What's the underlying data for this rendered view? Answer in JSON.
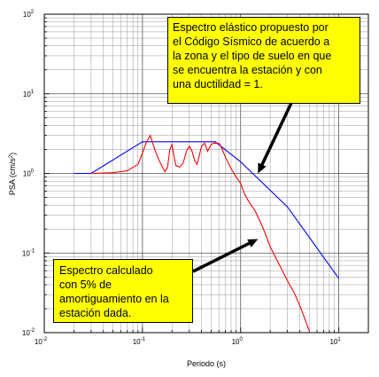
{
  "chart_data": {
    "type": "line",
    "xscale": "log",
    "yscale": "log",
    "xlim": [
      0.01,
      20
    ],
    "ylim": [
      0.01,
      100
    ],
    "xlabel": "Periodo (s)",
    "ylabel_main": "PSA (cm/s",
    "ylabel_sup": "2",
    "ylabel_end": ")",
    "grid": true,
    "x_ticks": [
      {
        "v": 0.01,
        "base": "10",
        "exp": "-2"
      },
      {
        "v": 0.1,
        "base": "10",
        "exp": "-1"
      },
      {
        "v": 1,
        "base": "10",
        "exp": "0"
      },
      {
        "v": 10,
        "base": "10",
        "exp": "1"
      }
    ],
    "y_ticks": [
      {
        "v": 0.01,
        "base": "10",
        "exp": "-2"
      },
      {
        "v": 0.1,
        "base": "10",
        "exp": "-1"
      },
      {
        "v": 1,
        "base": "10",
        "exp": "0"
      },
      {
        "v": 10,
        "base": "10",
        "exp": "1"
      },
      {
        "v": 100,
        "base": "10",
        "exp": "2"
      }
    ],
    "series": [
      {
        "color": "#0000ff",
        "points": [
          [
            0.02,
            1.0
          ],
          [
            0.03,
            1.0
          ],
          [
            0.1,
            2.5
          ],
          [
            0.14,
            2.5
          ],
          [
            0.55,
            2.5
          ],
          [
            1.0,
            1.4
          ],
          [
            3.0,
            0.38
          ],
          [
            10.0,
            0.048
          ]
        ]
      },
      {
        "color": "#ff0000",
        "points": [
          [
            0.03,
            1.0
          ],
          [
            0.05,
            1.02
          ],
          [
            0.07,
            1.08
          ],
          [
            0.09,
            1.3
          ],
          [
            0.1,
            1.8
          ],
          [
            0.11,
            2.5
          ],
          [
            0.12,
            3.0
          ],
          [
            0.13,
            2.2
          ],
          [
            0.14,
            1.7
          ],
          [
            0.15,
            1.4
          ],
          [
            0.16,
            1.2
          ],
          [
            0.17,
            1.05
          ],
          [
            0.18,
            1.2
          ],
          [
            0.19,
            2.0
          ],
          [
            0.2,
            2.3
          ],
          [
            0.21,
            1.6
          ],
          [
            0.22,
            1.25
          ],
          [
            0.24,
            1.2
          ],
          [
            0.26,
            1.35
          ],
          [
            0.28,
            1.9
          ],
          [
            0.3,
            2.2
          ],
          [
            0.32,
            1.9
          ],
          [
            0.34,
            1.45
          ],
          [
            0.36,
            1.3
          ],
          [
            0.38,
            1.7
          ],
          [
            0.4,
            2.2
          ],
          [
            0.43,
            2.4
          ],
          [
            0.46,
            1.9
          ],
          [
            0.5,
            2.3
          ],
          [
            0.53,
            2.4
          ],
          [
            0.6,
            2.4
          ],
          [
            0.65,
            2.0
          ],
          [
            0.7,
            1.6
          ],
          [
            0.8,
            1.15
          ],
          [
            0.9,
            0.9
          ],
          [
            1.0,
            0.75
          ],
          [
            1.1,
            0.55
          ],
          [
            1.2,
            0.45
          ],
          [
            1.4,
            0.34
          ],
          [
            1.6,
            0.24
          ],
          [
            1.8,
            0.17
          ],
          [
            2.0,
            0.12
          ],
          [
            2.5,
            0.07
          ],
          [
            3.0,
            0.045
          ],
          [
            3.5,
            0.032
          ],
          [
            4.0,
            0.022
          ],
          [
            4.5,
            0.015
          ],
          [
            5.0,
            0.0105
          ]
        ]
      }
    ],
    "annotations": [
      {
        "id": "design",
        "lines": [
          "Espectro elástico propuesto por",
          "el Código Sísmico de acuerdo a",
          "la zona y el tipo de suelo en que",
          "se encuentra la estación y con",
          "una ductilidad = 1."
        ],
        "arrow_to": [
          1.5,
          1.0
        ]
      },
      {
        "id": "calc",
        "lines": [
          "Espectro  calculado",
          "con 5% de",
          "amortiguamiento en la",
          "estación dada."
        ],
        "arrow_to": [
          1.5,
          0.15
        ]
      }
    ]
  }
}
